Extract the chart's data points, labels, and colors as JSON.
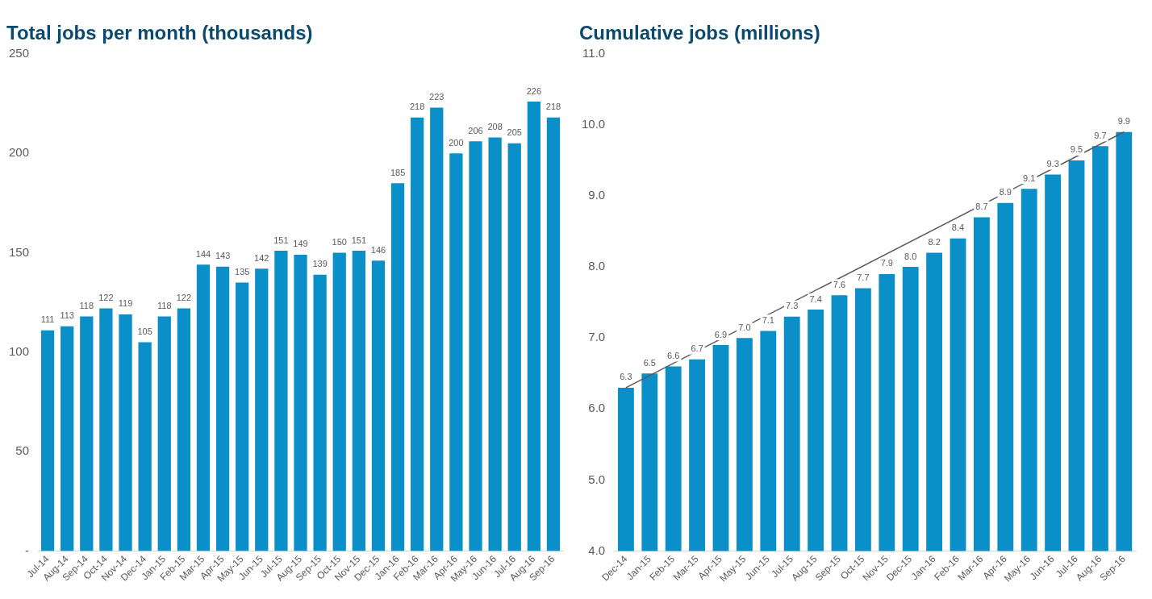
{
  "chart_data": [
    {
      "type": "bar",
      "title": "Total jobs per month (thousands)",
      "categories": [
        "Jul-14",
        "Aug-14",
        "Sep-14",
        "Oct-14",
        "Nov-14",
        "Dec-14",
        "Jan-15",
        "Feb-15",
        "Mar-15",
        "Apr-15",
        "May-15",
        "Jun-15",
        "Jul-15",
        "Aug-15",
        "Sep-15",
        "Oct-15",
        "Nov-15",
        "Dec-15",
        "Jan-16",
        "Feb-16",
        "Mar-16",
        "Apr-16",
        "May-16",
        "Jun-16",
        "Jul-16",
        "Aug-16",
        "Sep-16"
      ],
      "series": [
        {
          "color": "#0a8fc8",
          "values": [
            111,
            113,
            118,
            122,
            119,
            105,
            118,
            122,
            144,
            143,
            135,
            142,
            151,
            149,
            139,
            150,
            151,
            146,
            185,
            218,
            223,
            200,
            206,
            208,
            205,
            226,
            218
          ]
        }
      ],
      "ylim": [
        0,
        250
      ],
      "yticks": [
        {
          "value": 0,
          "label": "-"
        },
        50,
        100,
        150,
        200,
        250
      ],
      "data_labels": true
    },
    {
      "type": "bar",
      "title": "Cumulative jobs (millions)",
      "categories": [
        "Dec-14",
        "Jan-15",
        "Feb-15",
        "Mar-15",
        "Apr-15",
        "May-15",
        "Jun-15",
        "Jul-15",
        "Aug-15",
        "Sep-15",
        "Oct-15",
        "Nov-15",
        "Dec-15",
        "Jan-16",
        "Feb-16",
        "Mar-16",
        "Apr-16",
        "May-16",
        "Jun-16",
        "Jul-16",
        "Aug-16",
        "Sep-16"
      ],
      "series": [
        {
          "color": "#0a8fc8",
          "values": [
            6.3,
            6.5,
            6.6,
            6.7,
            6.9,
            7.0,
            7.1,
            7.3,
            7.4,
            7.6,
            7.7,
            7.9,
            8.0,
            8.2,
            8.4,
            8.7,
            8.9,
            9.1,
            9.3,
            9.5,
            9.7,
            9.9
          ],
          "value_labels": [
            "6.3",
            "6.5",
            "6.6",
            "6.7",
            "6.9",
            "7.0",
            "7.1",
            "7.3",
            "7.4",
            "7.6",
            "7.7",
            "7.9",
            "8.0",
            "8.2",
            "8.4",
            "8.7",
            "8.9",
            "9.1",
            "9.3",
            "9.5",
            "9.7",
            "9.9"
          ]
        },
        {
          "type": "line",
          "color": "#595959",
          "x": [
            "Dec-14",
            "Sep-16"
          ],
          "values": [
            6.3,
            9.9
          ]
        }
      ],
      "ylim": [
        4,
        11
      ],
      "yticks": [
        {
          "value": 4,
          "label": "4.0"
        },
        {
          "value": 5,
          "label": "5.0"
        },
        {
          "value": 6,
          "label": "6.0"
        },
        {
          "value": 7,
          "label": "7.0"
        },
        {
          "value": 8,
          "label": "8.0"
        },
        {
          "value": 9,
          "label": "9.0"
        },
        {
          "value": 10,
          "label": "10.0"
        },
        {
          "value": 11,
          "label": "11.0"
        }
      ]
    }
  ]
}
